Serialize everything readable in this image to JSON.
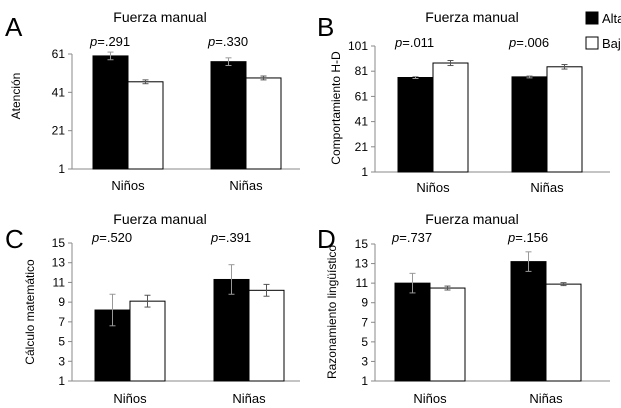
{
  "legend": {
    "items": [
      {
        "label": "Alta",
        "color": "#000000"
      },
      {
        "label": "Baja",
        "color": "#ffffff"
      }
    ],
    "placement": "top-right"
  },
  "chart_data": [
    {
      "panel": "A",
      "type": "bar",
      "title": "Fuerza manual",
      "ylabel": "Atención",
      "xlabel": "",
      "categories": [
        "Niños",
        "Niñas"
      ],
      "ylim": [
        1,
        61
      ],
      "yticks": [
        1,
        21,
        41,
        61
      ],
      "series": [
        {
          "name": "Alta",
          "values": [
            60,
            57
          ],
          "errors": [
            2,
            2
          ]
        },
        {
          "name": "Baja",
          "values": [
            46.5,
            48.5
          ],
          "errors": [
            1,
            1
          ]
        }
      ],
      "annotations": [
        {
          "prefix": "p",
          "text": "=.291"
        },
        {
          "prefix": "p",
          "text": "=.330"
        }
      ]
    },
    {
      "panel": "B",
      "type": "bar",
      "title": "Fuerza manual",
      "ylabel": "Comportamiento H-D",
      "xlabel": "",
      "categories": [
        "Niños",
        "Niñas"
      ],
      "ylim": [
        1,
        101
      ],
      "yticks": [
        1,
        21,
        41,
        61,
        81,
        101
      ],
      "series": [
        {
          "name": "Alta",
          "values": [
            76,
            76.5
          ],
          "errors": [
            0.8,
            0.8
          ]
        },
        {
          "name": "Baja",
          "values": [
            87.5,
            84.5
          ],
          "errors": [
            2,
            1.8
          ]
        }
      ],
      "annotations": [
        {
          "prefix": "p",
          "text": "=.011"
        },
        {
          "prefix": "p",
          "text": "=.006"
        }
      ]
    },
    {
      "panel": "C",
      "type": "bar",
      "title": "Fuerza manual",
      "ylabel": "Cálculo matemático",
      "xlabel": "",
      "categories": [
        "Niños",
        "Niñas"
      ],
      "ylim": [
        1,
        15
      ],
      "yticks": [
        1,
        3,
        5,
        7,
        9,
        11,
        13,
        15
      ],
      "series": [
        {
          "name": "Alta",
          "values": [
            8.2,
            11.3
          ],
          "errors": [
            1.6,
            1.5
          ]
        },
        {
          "name": "Baja",
          "values": [
            9.1,
            10.2
          ],
          "errors": [
            0.6,
            0.6
          ]
        }
      ],
      "annotations": [
        {
          "prefix": "p",
          "text": "=.520"
        },
        {
          "prefix": "p",
          "text": "=.391"
        }
      ]
    },
    {
      "panel": "D",
      "type": "bar",
      "title": "Fuerza manual",
      "ylabel": "Razonamiento lingüístico",
      "xlabel": "",
      "categories": [
        "Niños",
        "Niñas"
      ],
      "ylim": [
        1,
        15
      ],
      "yticks": [
        1,
        3,
        5,
        7,
        9,
        11,
        13,
        15
      ],
      "series": [
        {
          "name": "Alta",
          "values": [
            11,
            13.2
          ],
          "errors": [
            1,
            1
          ]
        },
        {
          "name": "Baja",
          "values": [
            10.5,
            10.9
          ],
          "errors": [
            0.2,
            0.15
          ]
        }
      ],
      "annotations": [
        {
          "prefix": "p",
          "text": "=.737"
        },
        {
          "prefix": "p",
          "text": "=.156"
        }
      ]
    }
  ]
}
